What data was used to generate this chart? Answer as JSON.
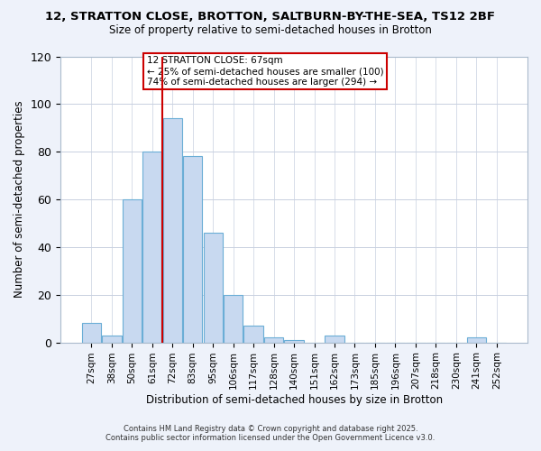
{
  "title": "12, STRATTON CLOSE, BROTTON, SALTBURN-BY-THE-SEA, TS12 2BF",
  "subtitle": "Size of property relative to semi-detached houses in Brotton",
  "xlabel": "Distribution of semi-detached houses by size in Brotton",
  "ylabel": "Number of semi-detached properties",
  "categories": [
    "27sqm",
    "38sqm",
    "50sqm",
    "61sqm",
    "72sqm",
    "83sqm",
    "95sqm",
    "106sqm",
    "117sqm",
    "128sqm",
    "140sqm",
    "151sqm",
    "162sqm",
    "173sqm",
    "185sqm",
    "196sqm",
    "207sqm",
    "218sqm",
    "230sqm",
    "241sqm",
    "252sqm"
  ],
  "values": [
    8,
    3,
    60,
    80,
    94,
    78,
    46,
    20,
    7,
    2,
    1,
    0,
    3,
    0,
    0,
    0,
    0,
    0,
    0,
    2,
    0
  ],
  "bar_color": "#c8d9f0",
  "bar_edge_color": "#6baed6",
  "vline_x": 3.5,
  "vline_color": "#cc0000",
  "annotation_title": "12 STRATTON CLOSE: 67sqm",
  "annotation_line2": "← 25% of semi-detached houses are smaller (100)",
  "annotation_line3": "74% of semi-detached houses are larger (294) →",
  "ylim": [
    0,
    120
  ],
  "yticks": [
    0,
    20,
    40,
    60,
    80,
    100,
    120
  ],
  "footer1": "Contains HM Land Registry data © Crown copyright and database right 2025.",
  "footer2": "Contains public sector information licensed under the Open Government Licence v3.0.",
  "bg_color": "#eef2fa",
  "plot_bg_color": "#ffffff",
  "grid_color": "#c8d0e0"
}
